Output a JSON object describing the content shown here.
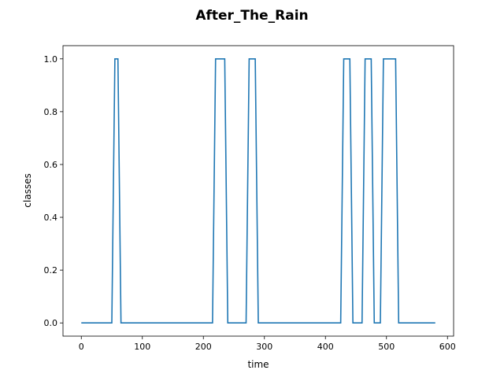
{
  "chart_data": {
    "type": "line",
    "title": "After_The_Rain",
    "xlabel": "time",
    "ylabel": "classes",
    "xlim": [
      -30,
      610
    ],
    "ylim": [
      -0.05,
      1.05
    ],
    "x_ticks": [
      0,
      100,
      200,
      300,
      400,
      500,
      600
    ],
    "x_tick_labels": [
      "0",
      "100",
      "200",
      "300",
      "400",
      "500",
      "600"
    ],
    "y_ticks": [
      0.0,
      0.2,
      0.4,
      0.6,
      0.8,
      1.0
    ],
    "y_tick_labels": [
      "0.0",
      "0.2",
      "0.4",
      "0.6",
      "0.8",
      "1.0"
    ],
    "grid": false,
    "series": [
      {
        "color": "#1f77b4",
        "x": [
          0,
          50,
          55,
          60,
          65,
          215,
          220,
          225,
          230,
          235,
          240,
          270,
          275,
          280,
          285,
          290,
          425,
          430,
          435,
          440,
          445,
          455,
          460,
          465,
          470,
          475,
          480,
          485,
          490,
          495,
          500,
          505,
          510,
          515,
          520,
          580
        ],
        "y": [
          0,
          0,
          1,
          1,
          0,
          0,
          1,
          1,
          1,
          1,
          0,
          0,
          1,
          1,
          1,
          0,
          0,
          1,
          1,
          1,
          0,
          0,
          0,
          1,
          1,
          1,
          0,
          0,
          0,
          1,
          1,
          1,
          1,
          1,
          0,
          0
        ]
      }
    ]
  }
}
